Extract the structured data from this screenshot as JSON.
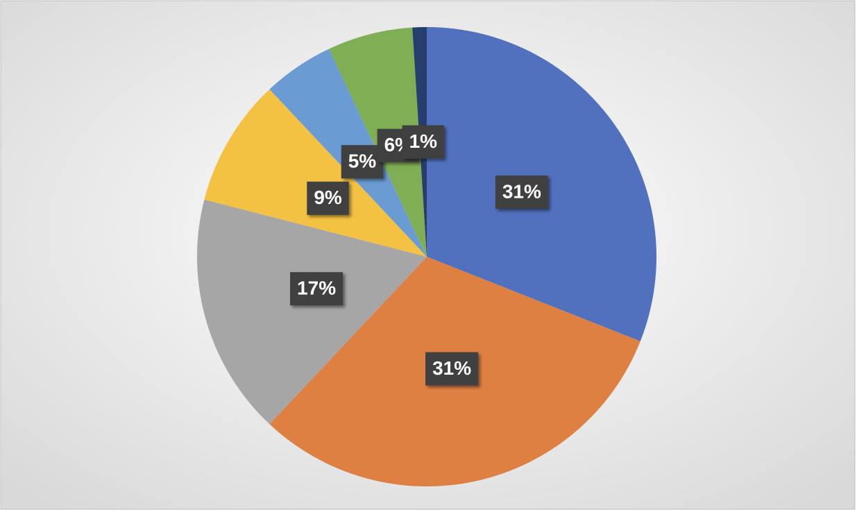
{
  "chart_data": {
    "type": "pie",
    "values": [
      31,
      31,
      17,
      9,
      5,
      6,
      1
    ],
    "value_labels": [
      "31%",
      "31%",
      "17%",
      "9%",
      "5%",
      "6%",
      "1%"
    ],
    "colors": [
      "#5171bf",
      "#df8043",
      "#a6a6a6",
      "#f3c242",
      "#6a9bd3",
      "#7fae55",
      "#263e6b"
    ]
  }
}
